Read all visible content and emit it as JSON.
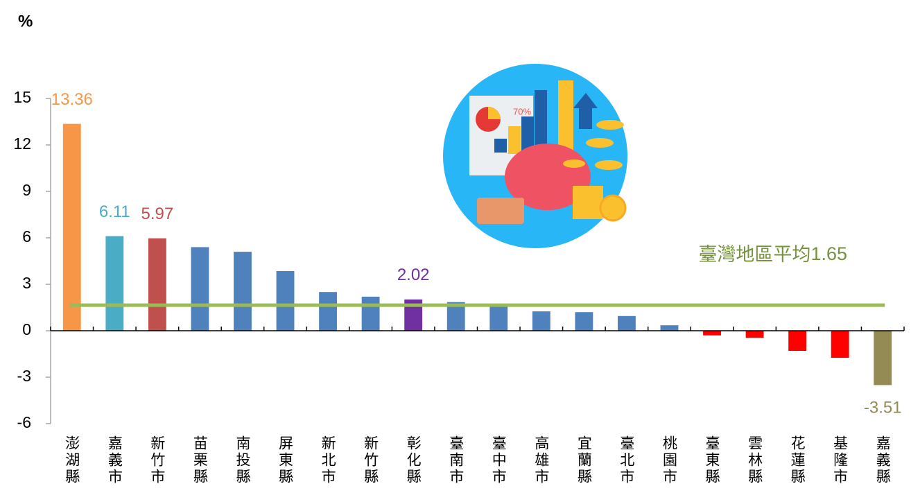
{
  "chart_data": {
    "type": "bar",
    "y_label": "%",
    "categories": [
      "澎湖縣",
      "嘉義市",
      "新竹市",
      "苗栗縣",
      "南投縣",
      "屏東縣",
      "新北市",
      "新竹縣",
      "彰化縣",
      "臺南市",
      "臺中市",
      "高雄市",
      "宜蘭縣",
      "臺北市",
      "桃園市",
      "臺東縣",
      "雲林縣",
      "花蓮縣",
      "基隆市",
      "嘉義縣"
    ],
    "values": [
      13.36,
      6.11,
      5.97,
      5.4,
      5.1,
      3.85,
      2.5,
      2.2,
      2.02,
      1.85,
      1.6,
      1.25,
      1.2,
      0.95,
      0.35,
      -0.3,
      -0.45,
      -1.3,
      -1.75,
      -3.51
    ],
    "value_labels": [
      "13.36",
      "6.11",
      "5.97",
      null,
      null,
      null,
      null,
      null,
      "2.02",
      null,
      null,
      null,
      null,
      null,
      null,
      null,
      null,
      null,
      null,
      "-3.51"
    ],
    "colors": [
      "#f79646",
      "#4bacc6",
      "#c0504d",
      "#4f81bd",
      "#4f81bd",
      "#4f81bd",
      "#4f81bd",
      "#4f81bd",
      "#7030a0",
      "#4f81bd",
      "#4f81bd",
      "#4f81bd",
      "#4f81bd",
      "#4f81bd",
      "#4f81bd",
      "#ff0000",
      "#ff0000",
      "#ff0000",
      "#ff0000",
      "#948a54"
    ],
    "ylim": [
      -6,
      15
    ],
    "yticks": [
      -6,
      -3,
      0,
      3,
      6,
      9,
      12,
      15
    ],
    "average": {
      "label": "臺灣地區平均",
      "value": 1.65,
      "color": "#9bbb59",
      "text_color": "#76923c"
    },
    "image_label": "70%"
  }
}
